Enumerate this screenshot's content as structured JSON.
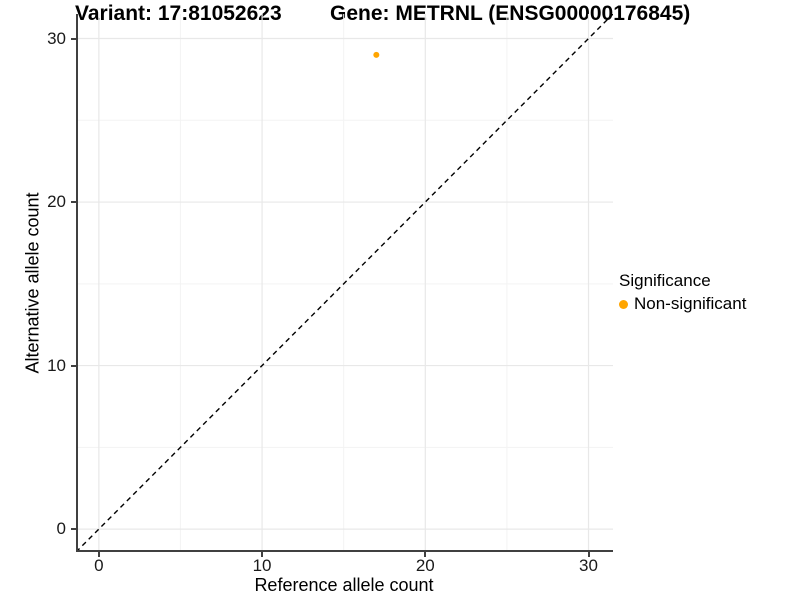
{
  "chart_data": {
    "type": "scatter",
    "title_left": "Variant: 17:81052623",
    "title_right": "Gene: METRNL (ENSG00000176845)",
    "xlabel": "Reference allele count",
    "ylabel": "Alternative allele count",
    "xlim": [
      -1.4,
      31.5
    ],
    "ylim": [
      -1.4,
      31.5
    ],
    "x_ticks": [
      0,
      10,
      20,
      30
    ],
    "y_ticks": [
      0,
      10,
      20,
      30
    ],
    "x_minor_ticks": [
      5,
      15,
      25
    ],
    "y_minor_ticks": [
      5,
      15,
      25
    ],
    "grid": "major+minor",
    "points": [
      {
        "x": 17,
        "y": 29,
        "series": "Non-significant",
        "color": "#FFA500"
      }
    ],
    "reference_line": {
      "slope": 1,
      "intercept": 0,
      "style": "dashed",
      "color": "#000000"
    },
    "legend": {
      "title": "Significance",
      "position": "right",
      "items": [
        {
          "label": "Non-significant",
          "color": "#FFA500"
        }
      ]
    }
  },
  "colors": {
    "point": "#FFA500",
    "grid_major": "#e8e8e8",
    "grid_minor": "#f3f3f3",
    "axis_line": "#404040",
    "reference_line": "#000000",
    "tick_text": "#1a1a1a"
  }
}
